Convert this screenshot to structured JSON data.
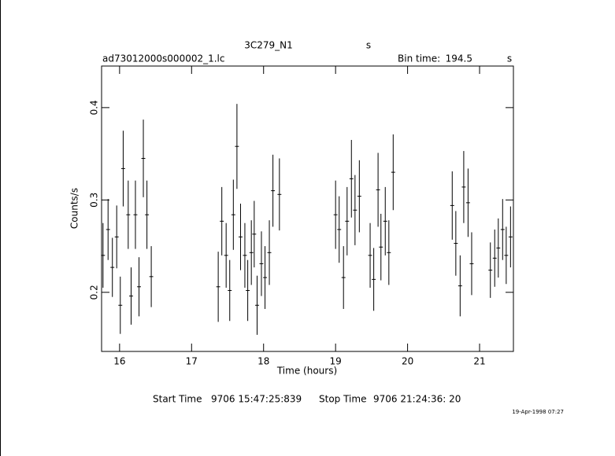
{
  "chart_data": {
    "type": "errorbar",
    "title": "3C279_N1",
    "title_unit": "s",
    "file": "ad73012000s000002_1.lc",
    "bin_time_label": "Bin time:",
    "bin_time": 194.5,
    "bin_time_unit": "s",
    "xlabel": "Time (hours)",
    "ylabel": "Counts/s",
    "xlim": [
      15.75,
      21.47
    ],
    "ylim": [
      0.136,
      0.445
    ],
    "xticks": [
      16,
      17,
      18,
      19,
      20,
      21
    ],
    "yticks": [
      0.2,
      0.3,
      0.4
    ],
    "color": "#000000",
    "x": [
      15.77,
      15.84,
      15.9,
      15.96,
      16.01,
      16.05,
      16.12,
      16.16,
      16.22,
      16.27,
      16.33,
      16.38,
      16.44,
      17.37,
      17.42,
      17.48,
      17.53,
      17.58,
      17.63,
      17.68,
      17.74,
      17.78,
      17.83,
      17.87,
      17.91,
      17.97,
      18.02,
      18.08,
      18.13,
      18.22,
      19.0,
      19.05,
      19.11,
      19.16,
      19.22,
      19.27,
      19.33,
      19.48,
      19.53,
      19.59,
      19.63,
      19.69,
      19.74,
      19.8,
      20.62,
      20.67,
      20.73,
      20.78,
      20.84,
      20.89,
      21.15,
      21.21,
      21.26,
      21.32,
      21.37,
      21.43
    ],
    "values": [
      0.24,
      0.268,
      0.227,
      0.26,
      0.186,
      0.334,
      0.284,
      0.196,
      0.284,
      0.206,
      0.345,
      0.284,
      0.217,
      0.206,
      0.277,
      0.24,
      0.202,
      0.284,
      0.358,
      0.26,
      0.24,
      0.202,
      0.243,
      0.263,
      0.186,
      0.231,
      0.216,
      0.243,
      0.31,
      0.306,
      0.284,
      0.268,
      0.216,
      0.277,
      0.323,
      0.289,
      0.304,
      0.24,
      0.214,
      0.311,
      0.249,
      0.277,
      0.243,
      0.33,
      0.294,
      0.253,
      0.207,
      0.314,
      0.297,
      0.231,
      0.224,
      0.237,
      0.248,
      0.268,
      0.24,
      0.26
    ],
    "errors": [
      0.035,
      0.033,
      0.032,
      0.034,
      0.031,
      0.041,
      0.037,
      0.031,
      0.037,
      0.032,
      0.042,
      0.037,
      0.033,
      0.038,
      0.037,
      0.035,
      0.033,
      0.038,
      0.046,
      0.036,
      0.035,
      0.033,
      0.035,
      0.036,
      0.032,
      0.035,
      0.034,
      0.035,
      0.039,
      0.039,
      0.037,
      0.036,
      0.034,
      0.037,
      0.042,
      0.038,
      0.039,
      0.035,
      0.034,
      0.04,
      0.036,
      0.037,
      0.035,
      0.041,
      0.037,
      0.035,
      0.033,
      0.039,
      0.037,
      0.034,
      0.03,
      0.031,
      0.032,
      0.033,
      0.031,
      0.033
    ],
    "start_time_label": "Start Time",
    "start_time": "9706 15:47:25:839",
    "stop_time_label": "Stop Time",
    "stop_time": "9706 21:24:36: 20",
    "date": "19-Apr-1998 07:27"
  }
}
